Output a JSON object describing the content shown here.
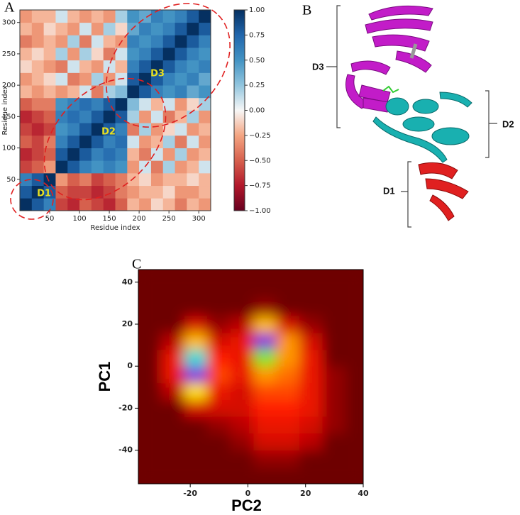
{
  "chart_data": [
    {
      "type": "heatmap",
      "panel_label": "A",
      "xlabel": "Residue index",
      "ylabel": "Residue index",
      "bins": [
        0,
        20,
        40,
        60,
        80,
        100,
        120,
        140,
        160,
        180,
        200,
        220,
        240,
        260,
        280,
        300,
        320
      ],
      "xlim": [
        0,
        320
      ],
      "ylim": [
        0,
        320
      ],
      "xticks": [
        50,
        100,
        150,
        200,
        250,
        300
      ],
      "yticks": [
        50,
        100,
        150,
        200,
        250,
        300
      ],
      "clim": [
        -1,
        1
      ],
      "cticks": [
        {
          "value": 1,
          "label": "1.00"
        },
        {
          "value": 0.75,
          "label": "0.75"
        },
        {
          "value": 0.5,
          "label": "0.50"
        },
        {
          "value": 0.25,
          "label": "0.25"
        },
        {
          "value": 0,
          "label": "0.00"
        },
        {
          "value": -0.25,
          "label": "−0.25"
        },
        {
          "value": -0.5,
          "label": "−0.50"
        },
        {
          "value": -0.75,
          "label": "−0.75"
        },
        {
          "value": -1,
          "label": "−1.00"
        }
      ],
      "annotations": [
        "D1",
        "D2",
        "D3"
      ],
      "values": [
        [
          1,
          0.8,
          0.6,
          -0.6,
          -0.7,
          -0.5,
          -0.6,
          -0.7,
          -0.5,
          -0.2,
          -0.3,
          -0.1,
          -0.2,
          -0.4,
          -0.2,
          -0.3
        ],
        [
          0.8,
          1,
          0.8,
          -0.5,
          -0.6,
          -0.6,
          -0.7,
          -0.6,
          -0.4,
          -0.3,
          -0.2,
          -0.2,
          -0.1,
          -0.3,
          -0.3,
          -0.2
        ],
        [
          0.6,
          0.8,
          1,
          -0.3,
          -0.5,
          -0.4,
          -0.6,
          -0.5,
          -0.4,
          -0.2,
          -0.1,
          -0.3,
          -0.2,
          -0.2,
          -0.1,
          -0.2
        ],
        [
          -0.6,
          -0.5,
          -0.3,
          1,
          0.8,
          0.6,
          0.5,
          0.6,
          0.5,
          -0.3,
          0.1,
          -0.4,
          0.2,
          -0.3,
          -0.2,
          0.1
        ],
        [
          -0.7,
          -0.6,
          -0.5,
          0.8,
          1,
          0.8,
          0.6,
          0.7,
          0.6,
          -0.2,
          -0.4,
          0.1,
          -0.3,
          0.2,
          -0.3,
          -0.2
        ],
        [
          -0.5,
          -0.6,
          -0.4,
          0.6,
          0.8,
          1,
          0.8,
          0.6,
          0.7,
          0.1,
          -0.3,
          -0.2,
          0.2,
          -0.4,
          0.1,
          -0.3
        ],
        [
          -0.6,
          -0.7,
          -0.6,
          0.5,
          0.6,
          0.8,
          1,
          0.8,
          0.6,
          -0.4,
          0.2,
          -0.3,
          -0.1,
          0.1,
          -0.3,
          -0.2
        ],
        [
          -0.7,
          -0.6,
          -0.5,
          0.6,
          0.7,
          0.6,
          0.8,
          1,
          0.8,
          0.2,
          -0.3,
          0.1,
          -0.4,
          -0.2,
          0.2,
          -0.3
        ],
        [
          -0.5,
          -0.4,
          -0.4,
          0.5,
          0.6,
          0.7,
          0.6,
          0.8,
          1,
          0.3,
          0.1,
          -0.2,
          0.1,
          -0.3,
          -0.1,
          0.2
        ],
        [
          -0.2,
          -0.3,
          -0.2,
          -0.3,
          -0.2,
          0.1,
          -0.4,
          0.2,
          0.3,
          1,
          0.8,
          0.6,
          0.5,
          0.6,
          0.4,
          0.5
        ],
        [
          -0.3,
          -0.2,
          -0.1,
          0.1,
          -0.4,
          -0.3,
          0.2,
          -0.3,
          0.1,
          0.8,
          1,
          0.8,
          0.6,
          0.5,
          0.6,
          0.4
        ],
        [
          -0.1,
          -0.2,
          -0.3,
          -0.4,
          0.1,
          -0.2,
          -0.3,
          0.1,
          -0.2,
          0.6,
          0.8,
          1,
          0.8,
          0.6,
          0.5,
          0.6
        ],
        [
          -0.2,
          -0.1,
          -0.2,
          0.2,
          -0.3,
          0.2,
          -0.1,
          -0.4,
          0.1,
          0.5,
          0.6,
          0.8,
          1,
          0.8,
          0.6,
          0.5
        ],
        [
          -0.4,
          -0.3,
          -0.2,
          -0.3,
          0.2,
          -0.4,
          0.1,
          -0.2,
          -0.3,
          0.6,
          0.5,
          0.6,
          0.8,
          1,
          0.8,
          0.6
        ],
        [
          -0.2,
          -0.3,
          -0.1,
          -0.2,
          -0.3,
          0.1,
          -0.3,
          0.2,
          -0.1,
          0.4,
          0.6,
          0.5,
          0.6,
          0.8,
          1,
          0.8
        ],
        [
          -0.3,
          -0.2,
          -0.2,
          0.1,
          -0.2,
          -0.3,
          -0.2,
          -0.3,
          0.2,
          0.5,
          0.4,
          0.6,
          0.5,
          0.6,
          0.8,
          1
        ]
      ]
    },
    {
      "type": "density",
      "panel_label": "C",
      "xlabel": "PC2",
      "ylabel": "PC1",
      "x_bins": [
        -38,
        -30,
        -22,
        -14,
        -6,
        2,
        10,
        18,
        26,
        34,
        40
      ],
      "y_bins": [
        -56,
        -48,
        -40,
        -32,
        -24,
        -16,
        -8,
        0,
        8,
        16,
        24,
        32,
        40,
        46
      ],
      "xlim": [
        -38,
        40
      ],
      "ylim": [
        -56,
        46
      ],
      "xticks": [
        -20,
        0,
        20,
        40
      ],
      "yticks": [
        -40,
        -20,
        0,
        20,
        40
      ],
      "values": [
        [
          0,
          0,
          0,
          0,
          0,
          0,
          0,
          0,
          0,
          0
        ],
        [
          0,
          0,
          0,
          0,
          0,
          0.05,
          0.05,
          0,
          0,
          0
        ],
        [
          0,
          0,
          0,
          0,
          0.05,
          0.15,
          0.15,
          0.1,
          0,
          0
        ],
        [
          0,
          0,
          0,
          0.05,
          0.1,
          0.2,
          0.2,
          0.15,
          0.05,
          0
        ],
        [
          0,
          0,
          0.15,
          0.15,
          0.15,
          0.25,
          0.25,
          0.2,
          0.05,
          0
        ],
        [
          0,
          0.1,
          0.5,
          0.2,
          0.15,
          0.3,
          0.3,
          0.2,
          0.05,
          0
        ],
        [
          0,
          0.2,
          0.95,
          0.3,
          0.2,
          0.4,
          0.35,
          0.2,
          0.05,
          0
        ],
        [
          0,
          0.2,
          0.75,
          0.25,
          0.2,
          0.6,
          0.4,
          0.2,
          0,
          0
        ],
        [
          0,
          0.1,
          0.45,
          0.15,
          0.2,
          0.95,
          0.4,
          0.15,
          0,
          0
        ],
        [
          0,
          0,
          0.15,
          0.05,
          0.1,
          0.45,
          0.15,
          0.05,
          0,
          0
        ],
        [
          0,
          0,
          0,
          0,
          0,
          0.05,
          0,
          0,
          0,
          0
        ],
        [
          0,
          0,
          0,
          0,
          0,
          0,
          0,
          0,
          0,
          0
        ],
        [
          0,
          0,
          0,
          0,
          0,
          0,
          0,
          0,
          0,
          0
        ]
      ]
    }
  ],
  "structure": {
    "panel_label": "B",
    "domains": [
      "D3",
      "D2",
      "D1"
    ]
  }
}
